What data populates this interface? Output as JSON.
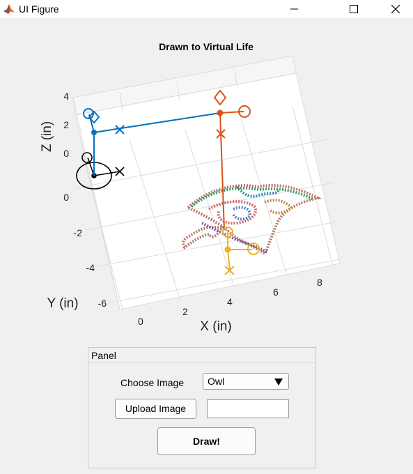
{
  "window": {
    "title": "UI Figure",
    "controls": [
      "minimize",
      "maximize",
      "close"
    ],
    "icon": "matlab-logo-icon"
  },
  "plot": {
    "title": "Drawn to Virtual Life",
    "x_label": "X (in)",
    "y_label": "Y (in)",
    "z_label": "Z (in)",
    "x_ticks": [
      "0",
      "2",
      "4",
      "6",
      "8"
    ],
    "y_ticks": [
      "0",
      "-2",
      "-4",
      "-6"
    ],
    "z_ticks": [
      "4",
      "2",
      "0"
    ],
    "grid": true
  },
  "chart_data": {
    "type": "scatter",
    "title": "Drawn to Virtual Life",
    "xlabel": "X (in)",
    "ylabel": "Y (in)",
    "zlabel": "Z (in)",
    "x_ticks": [
      0,
      2,
      4,
      6,
      8
    ],
    "y_ticks": [
      0,
      -2,
      -4,
      -6
    ],
    "z_ticks": [
      0,
      2,
      4
    ],
    "grid": true,
    "frames": [
      {
        "color": "#0072bd",
        "markers": [
          "o",
          "diamond",
          "x"
        ]
      },
      {
        "color": "#d95319",
        "markers": [
          "o",
          "diamond",
          "x"
        ]
      },
      {
        "color": "#edb120",
        "markers": [
          "o",
          "x"
        ]
      },
      {
        "color": "#000000",
        "markers": [
          "o",
          "x"
        ]
      }
    ],
    "drawing": "multicolor dotted owl outline"
  },
  "panel": {
    "title": "Panel",
    "choose_label": "Choose Image",
    "dropdown_value": "Owl",
    "upload_label": "Upload Image",
    "upload_value": "",
    "draw_label": "Draw!"
  },
  "colors": {
    "blue": "#0072bd",
    "orange": "#d95319",
    "yellow": "#edb120",
    "black": "#000000"
  }
}
